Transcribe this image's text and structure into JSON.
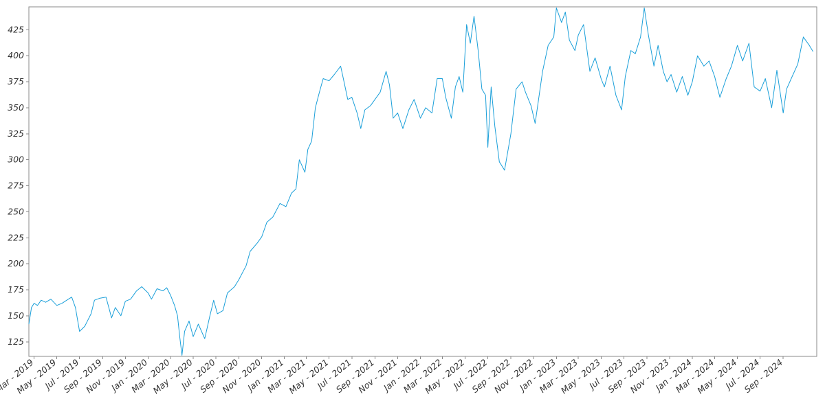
{
  "chart_data": {
    "type": "line",
    "title": "",
    "xlabel": "",
    "ylabel": "",
    "grid": false,
    "legend": "none",
    "xlim": [
      "2019-02-15",
      "2024-11-30"
    ],
    "ylim": [
      111,
      447
    ],
    "y_ticks": [
      125,
      150,
      175,
      200,
      225,
      250,
      275,
      300,
      325,
      350,
      375,
      400,
      425
    ],
    "x_ticks": [
      {
        "date": "2019-03-01",
        "label": "Mar - 2019"
      },
      {
        "date": "2019-05-01",
        "label": "May - 2019"
      },
      {
        "date": "2019-07-01",
        "label": "Jul - 2019"
      },
      {
        "date": "2019-09-01",
        "label": "Sep - 2019"
      },
      {
        "date": "2019-11-01",
        "label": "Nov - 2019"
      },
      {
        "date": "2020-01-01",
        "label": "Jan - 2020"
      },
      {
        "date": "2020-03-01",
        "label": "Mar - 2020"
      },
      {
        "date": "2020-05-01",
        "label": "May - 2020"
      },
      {
        "date": "2020-07-01",
        "label": "Jul - 2020"
      },
      {
        "date": "2020-09-01",
        "label": "Sep - 2020"
      },
      {
        "date": "2020-11-01",
        "label": "Nov - 2020"
      },
      {
        "date": "2021-01-01",
        "label": "Jan - 2021"
      },
      {
        "date": "2021-03-01",
        "label": "Mar - 2021"
      },
      {
        "date": "2021-05-01",
        "label": "May - 2021"
      },
      {
        "date": "2021-07-01",
        "label": "Jul - 2021"
      },
      {
        "date": "2021-09-01",
        "label": "Sep - 2021"
      },
      {
        "date": "2021-11-01",
        "label": "Nov - 2021"
      },
      {
        "date": "2022-01-01",
        "label": "Jan - 2022"
      },
      {
        "date": "2022-03-01",
        "label": "Mar - 2022"
      },
      {
        "date": "2022-05-01",
        "label": "May - 2022"
      },
      {
        "date": "2022-07-01",
        "label": "Jul - 2022"
      },
      {
        "date": "2022-09-01",
        "label": "Sep - 2022"
      },
      {
        "date": "2022-11-01",
        "label": "Nov - 2022"
      },
      {
        "date": "2023-01-01",
        "label": "Jan - 2023"
      },
      {
        "date": "2023-03-01",
        "label": "Mar - 2023"
      },
      {
        "date": "2023-05-01",
        "label": "May - 2023"
      },
      {
        "date": "2023-07-01",
        "label": "Jul - 2023"
      },
      {
        "date": "2023-09-01",
        "label": "Sep - 2023"
      },
      {
        "date": "2023-11-01",
        "label": "Nov - 2023"
      },
      {
        "date": "2024-01-01",
        "label": "Jan - 2024"
      },
      {
        "date": "2024-03-01",
        "label": "Mar - 2024"
      },
      {
        "date": "2024-05-01",
        "label": "May - 2024"
      },
      {
        "date": "2024-07-01",
        "label": "Jul - 2024"
      },
      {
        "date": "2024-09-01",
        "label": "Sep - 2024"
      }
    ],
    "series": [
      {
        "color": "#1a9fd9",
        "points": [
          [
            "2019-02-15",
            142
          ],
          [
            "2019-02-22",
            158
          ],
          [
            "2019-03-01",
            162
          ],
          [
            "2019-03-10",
            160
          ],
          [
            "2019-03-20",
            165
          ],
          [
            "2019-04-01",
            163
          ],
          [
            "2019-04-15",
            166
          ],
          [
            "2019-05-01",
            160
          ],
          [
            "2019-05-15",
            162
          ],
          [
            "2019-06-01",
            166
          ],
          [
            "2019-06-10",
            168
          ],
          [
            "2019-06-20",
            158
          ],
          [
            "2019-07-01",
            135
          ],
          [
            "2019-07-15",
            140
          ],
          [
            "2019-08-01",
            152
          ],
          [
            "2019-08-10",
            165
          ],
          [
            "2019-08-25",
            167
          ],
          [
            "2019-09-10",
            168
          ],
          [
            "2019-09-25",
            148
          ],
          [
            "2019-10-05",
            158
          ],
          [
            "2019-10-20",
            150
          ],
          [
            "2019-11-01",
            164
          ],
          [
            "2019-11-15",
            166
          ],
          [
            "2019-12-01",
            174
          ],
          [
            "2019-12-15",
            178
          ],
          [
            "2020-01-01",
            172
          ],
          [
            "2020-01-10",
            166
          ],
          [
            "2020-01-25",
            176
          ],
          [
            "2020-02-10",
            174
          ],
          [
            "2020-02-20",
            177
          ],
          [
            "2020-03-01",
            170
          ],
          [
            "2020-03-12",
            160
          ],
          [
            "2020-03-20",
            150
          ],
          [
            "2020-03-26",
            130
          ],
          [
            "2020-04-01",
            112
          ],
          [
            "2020-04-08",
            135
          ],
          [
            "2020-04-20",
            145
          ],
          [
            "2020-05-01",
            130
          ],
          [
            "2020-05-15",
            142
          ],
          [
            "2020-06-01",
            128
          ],
          [
            "2020-06-15",
            150
          ],
          [
            "2020-06-25",
            165
          ],
          [
            "2020-07-05",
            152
          ],
          [
            "2020-07-20",
            155
          ],
          [
            "2020-08-01",
            172
          ],
          [
            "2020-08-20",
            178
          ],
          [
            "2020-09-01",
            185
          ],
          [
            "2020-09-20",
            198
          ],
          [
            "2020-10-01",
            212
          ],
          [
            "2020-10-20",
            220
          ],
          [
            "2020-11-01",
            226
          ],
          [
            "2020-11-15",
            240
          ],
          [
            "2020-12-01",
            245
          ],
          [
            "2020-12-20",
            258
          ],
          [
            "2021-01-05",
            255
          ],
          [
            "2021-01-20",
            268
          ],
          [
            "2021-02-01",
            272
          ],
          [
            "2021-02-10",
            300
          ],
          [
            "2021-02-25",
            288
          ],
          [
            "2021-03-05",
            310
          ],
          [
            "2021-03-15",
            318
          ],
          [
            "2021-03-25",
            350
          ],
          [
            "2021-04-05",
            365
          ],
          [
            "2021-04-15",
            378
          ],
          [
            "2021-05-01",
            376
          ],
          [
            "2021-05-15",
            382
          ],
          [
            "2021-06-01",
            390
          ],
          [
            "2021-06-10",
            375
          ],
          [
            "2021-06-20",
            358
          ],
          [
            "2021-07-01",
            360
          ],
          [
            "2021-07-15",
            345
          ],
          [
            "2021-07-25",
            330
          ],
          [
            "2021-08-05",
            348
          ],
          [
            "2021-08-20",
            352
          ],
          [
            "2021-09-01",
            358
          ],
          [
            "2021-09-15",
            365
          ],
          [
            "2021-10-01",
            385
          ],
          [
            "2021-10-10",
            372
          ],
          [
            "2021-10-20",
            340
          ],
          [
            "2021-11-01",
            345
          ],
          [
            "2021-11-15",
            330
          ],
          [
            "2021-12-01",
            348
          ],
          [
            "2021-12-15",
            358
          ],
          [
            "2022-01-01",
            340
          ],
          [
            "2022-01-15",
            350
          ],
          [
            "2022-02-01",
            345
          ],
          [
            "2022-02-15",
            378
          ],
          [
            "2022-03-01",
            378
          ],
          [
            "2022-03-10",
            360
          ],
          [
            "2022-03-25",
            340
          ],
          [
            "2022-04-05",
            370
          ],
          [
            "2022-04-15",
            380
          ],
          [
            "2022-04-25",
            365
          ],
          [
            "2022-05-05",
            430
          ],
          [
            "2022-05-15",
            412
          ],
          [
            "2022-05-25",
            438
          ],
          [
            "2022-06-05",
            405
          ],
          [
            "2022-06-15",
            368
          ],
          [
            "2022-06-25",
            362
          ],
          [
            "2022-07-01",
            312
          ],
          [
            "2022-07-10",
            370
          ],
          [
            "2022-07-20",
            332
          ],
          [
            "2022-08-01",
            298
          ],
          [
            "2022-08-15",
            290
          ],
          [
            "2022-09-01",
            325
          ],
          [
            "2022-09-15",
            368
          ],
          [
            "2022-10-01",
            375
          ],
          [
            "2022-10-10",
            365
          ],
          [
            "2022-10-25",
            352
          ],
          [
            "2022-11-05",
            335
          ],
          [
            "2022-11-15",
            360
          ],
          [
            "2022-11-25",
            385
          ],
          [
            "2022-12-10",
            410
          ],
          [
            "2022-12-25",
            418
          ],
          [
            "2023-01-01",
            446
          ],
          [
            "2023-01-15",
            432
          ],
          [
            "2023-01-25",
            442
          ],
          [
            "2023-02-05",
            415
          ],
          [
            "2023-02-20",
            405
          ],
          [
            "2023-03-01",
            420
          ],
          [
            "2023-03-15",
            430
          ],
          [
            "2023-04-01",
            385
          ],
          [
            "2023-04-15",
            398
          ],
          [
            "2023-05-01",
            378
          ],
          [
            "2023-05-10",
            370
          ],
          [
            "2023-05-25",
            390
          ],
          [
            "2023-06-10",
            362
          ],
          [
            "2023-06-25",
            348
          ],
          [
            "2023-07-05",
            380
          ],
          [
            "2023-07-20",
            405
          ],
          [
            "2023-08-01",
            402
          ],
          [
            "2023-08-15",
            418
          ],
          [
            "2023-08-25",
            446
          ],
          [
            "2023-09-05",
            420
          ],
          [
            "2023-09-20",
            390
          ],
          [
            "2023-10-01",
            410
          ],
          [
            "2023-10-15",
            385
          ],
          [
            "2023-10-25",
            375
          ],
          [
            "2023-11-05",
            382
          ],
          [
            "2023-11-20",
            365
          ],
          [
            "2023-12-05",
            380
          ],
          [
            "2023-12-20",
            362
          ],
          [
            "2024-01-01",
            375
          ],
          [
            "2024-01-15",
            400
          ],
          [
            "2024-02-01",
            390
          ],
          [
            "2024-02-15",
            395
          ],
          [
            "2024-03-01",
            380
          ],
          [
            "2024-03-15",
            360
          ],
          [
            "2024-04-01",
            378
          ],
          [
            "2024-04-15",
            390
          ],
          [
            "2024-05-01",
            410
          ],
          [
            "2024-05-15",
            395
          ],
          [
            "2024-06-01",
            412
          ],
          [
            "2024-06-15",
            370
          ],
          [
            "2024-07-01",
            366
          ],
          [
            "2024-07-15",
            378
          ],
          [
            "2024-08-01",
            350
          ],
          [
            "2024-08-15",
            386
          ],
          [
            "2024-09-01",
            345
          ],
          [
            "2024-09-10",
            368
          ],
          [
            "2024-09-25",
            380
          ],
          [
            "2024-10-10",
            392
          ],
          [
            "2024-10-25",
            418
          ],
          [
            "2024-11-10",
            410
          ],
          [
            "2024-11-20",
            404
          ]
        ]
      }
    ]
  }
}
